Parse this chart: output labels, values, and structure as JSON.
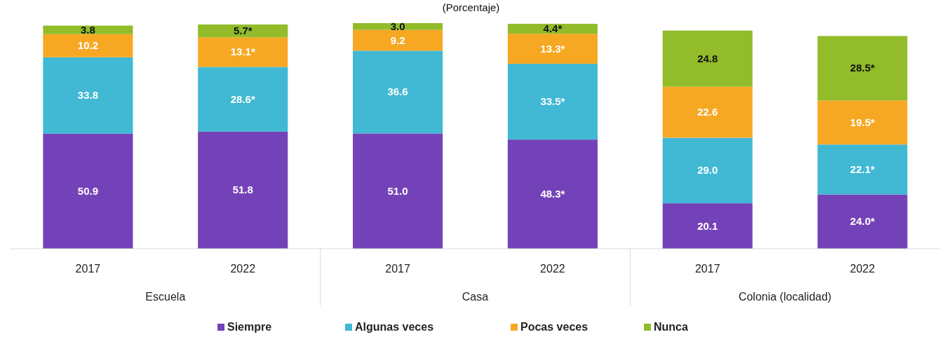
{
  "chart_data": {
    "type": "bar",
    "stacked": true,
    "title": "(Porcentaje)",
    "categories": [
      "2017",
      "2022",
      "2017",
      "2022",
      "2017",
      "2022"
    ],
    "annotations": [
      "Escuela",
      "Casa",
      "Colonia (localidad)"
    ],
    "series": [
      {
        "name": "Siempre",
        "color": "#7442b8",
        "values": [
          50.9,
          51.8,
          51.0,
          48.3,
          20.1,
          24.0
        ],
        "value_labels": [
          "50.9",
          "51.8",
          "51.0",
          "48.3*",
          "20.1",
          "24.0*"
        ]
      },
      {
        "name": "Algunas veces",
        "color": "#41b8d4",
        "values": [
          33.8,
          28.6,
          36.6,
          33.5,
          29.0,
          22.1
        ],
        "value_labels": [
          "33.8",
          "28.6*",
          "36.6",
          "33.5*",
          "29.0",
          "22.1*"
        ]
      },
      {
        "name": "Pocas veces",
        "color": "#f7a823",
        "values": [
          10.2,
          13.1,
          9.2,
          13.3,
          22.6,
          19.5
        ],
        "value_labels": [
          "10.2",
          "13.1*",
          "9.2",
          "13.3*",
          "22.6",
          "19.5*"
        ]
      },
      {
        "name": "Nunca",
        "color": "#92bc2a",
        "values": [
          3.8,
          5.7,
          3.0,
          4.4,
          24.8,
          28.5
        ],
        "value_labels": [
          "3.8",
          "5.7*",
          "3.0",
          "4.4*",
          "24.8",
          "28.5*"
        ]
      }
    ],
    "legend": "bottom"
  }
}
